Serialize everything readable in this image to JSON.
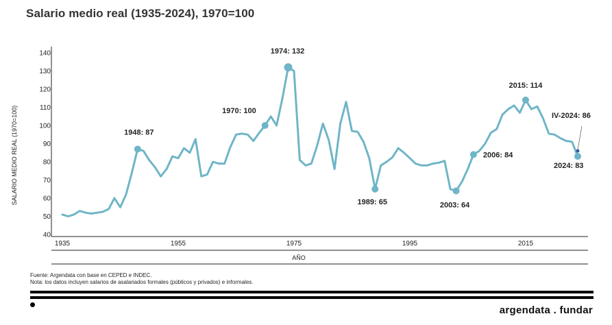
{
  "title": "Salario medio real (1935-2024), 1970=100",
  "chart_data": {
    "type": "line",
    "title": "Salario medio real (1935-2024), 1970=100",
    "ylabel": "SALARIO MEDIO REAL (1970=100)",
    "xlabel": "AÑO",
    "ylim": [
      40,
      140
    ],
    "xlim": [
      1935,
      2024
    ],
    "yticks": [
      "40",
      "50",
      "60",
      "70",
      "80",
      "90",
      "100",
      "110",
      "120",
      "130",
      "140"
    ],
    "xticks": [
      "1935",
      "1955",
      "1975",
      "1995",
      "2015"
    ],
    "line_color": "#6fb5c7",
    "marker_color": "#6fb5c7",
    "last_point_color": "#2f5f9e",
    "series": [
      {
        "x": [
          1935,
          1936,
          1937,
          1938,
          1939,
          1940,
          1941,
          1942,
          1943,
          1944,
          1945,
          1946,
          1947,
          1948,
          1949,
          1950,
          1951,
          1952,
          1953,
          1954,
          1955,
          1956,
          1957,
          1958,
          1959,
          1960,
          1961,
          1962,
          1963,
          1964,
          1965,
          1966,
          1967,
          1968,
          1969,
          1970,
          1971,
          1972,
          1973,
          1974,
          1975,
          1976,
          1977,
          1978,
          1979,
          1980,
          1981,
          1982,
          1983,
          1984,
          1985,
          1986,
          1987,
          1988,
          1989,
          1990,
          1991,
          1992,
          1993,
          1994,
          1995,
          1996,
          1997,
          1998,
          1999,
          2000,
          2001,
          2002,
          2003,
          2004,
          2005,
          2006,
          2007,
          2008,
          2009,
          2010,
          2011,
          2012,
          2013,
          2014,
          2015,
          2016,
          2017,
          2018,
          2019,
          2020,
          2021,
          2022,
          2023,
          2024
        ],
        "values": [
          51,
          50,
          51,
          53,
          52,
          51.5,
          52,
          52.5,
          54,
          60,
          55,
          62,
          74,
          87,
          86,
          81,
          77,
          72,
          76,
          83,
          82,
          87.5,
          85,
          92.5,
          72,
          73,
          80,
          79,
          79,
          88,
          95,
          95.5,
          95,
          91.5,
          96,
          100,
          105,
          100,
          115,
          132,
          130,
          81,
          78,
          79,
          89,
          101,
          92,
          76,
          101,
          113,
          97,
          96.5,
          91,
          82,
          65,
          78,
          80,
          82.5,
          87.5,
          85,
          82,
          79,
          78,
          78,
          79,
          79.5,
          80.5,
          65,
          64,
          69,
          76,
          84,
          86,
          90,
          96,
          98,
          106,
          109,
          111,
          107,
          114,
          109,
          110.5,
          104,
          95.5,
          95,
          93,
          91.5,
          91,
          83
        ]
      }
    ],
    "annotations": [
      {
        "label": "1948:  87",
        "x": 1948,
        "y": 87
      },
      {
        "label": "1970:  100",
        "x": 1970,
        "y": 100
      },
      {
        "label": "1974:  132",
        "x": 1974,
        "y": 132
      },
      {
        "label": "1989:  65",
        "x": 1989,
        "y": 65
      },
      {
        "label": "2003:  64",
        "x": 2003,
        "y": 64
      },
      {
        "label": "2006:  84",
        "x": 2006,
        "y": 84
      },
      {
        "label": "2015:  114",
        "x": 2015,
        "y": 114
      },
      {
        "label": "IV-2024:  86",
        "x": 2024,
        "y": 86
      },
      {
        "label": "2024:  83",
        "x": 2024,
        "y": 83
      }
    ]
  },
  "footer": {
    "source": "Fuente: Argendata con base en CEPED e INDEC.",
    "note": "Nota: los datos incluyen salarios de asalariados formales (públicos y privados) e informales.",
    "brand": "argendata . fundar"
  }
}
